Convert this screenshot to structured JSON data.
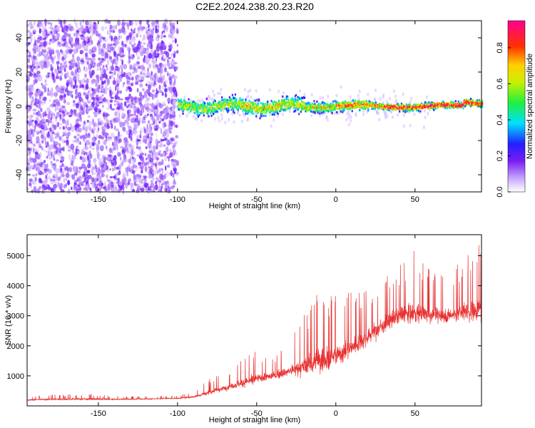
{
  "title": "C2E2.2024.238.20.23.R20",
  "chart_data": [
    {
      "type": "heatmap",
      "xlabel": "Height of straight line (km)",
      "ylabel": "Frequency (Hz)",
      "xlim": [
        -195,
        92
      ],
      "ylim": [
        -50,
        50
      ],
      "xticks": [
        "-150",
        "-100",
        "-50",
        "0",
        "50"
      ],
      "yticks": [
        "40",
        "20",
        "0",
        "-20",
        "-40"
      ],
      "colorbar": {
        "label": "Normalized spectral amplitude",
        "range": [
          0,
          0.95
        ],
        "ticks": [
          "0.0",
          "0.2",
          "0.4",
          "0.6",
          "0.8"
        ],
        "colormap": "rainbow (white-violet-blue-cyan-green-yellow-red-magenta)"
      },
      "regions": [
        {
          "x_from": -195,
          "x_to": -100,
          "pattern": "broadband noise, amplitude ~0.0-0.15 across all frequencies"
        },
        {
          "x_from": -100,
          "x_to": 92,
          "pattern": "narrow band near 0 Hz, amplitude rising to ~0.8-0.9 at positive heights"
        }
      ],
      "grid": false
    },
    {
      "type": "line",
      "xlabel": "Height of straight line (km)",
      "ylabel": "SNR (10 * v/v)",
      "xlim": [
        -195,
        92
      ],
      "ylim": [
        0,
        5700
      ],
      "xticks": [
        "-150",
        "-100",
        "-50",
        "0",
        "50"
      ],
      "yticks": [
        "5000",
        "4000",
        "3000",
        "2000",
        "1000"
      ],
      "color": "#e83030",
      "series": [
        {
          "x": [
            -195,
            -180,
            -160,
            -140,
            -120,
            -100,
            -90,
            -80,
            -70,
            -60,
            -50,
            -40,
            -30,
            -20,
            -10,
            0,
            10,
            20,
            30,
            40,
            50,
            60,
            70,
            80,
            90
          ],
          "y": [
            200,
            220,
            230,
            220,
            230,
            250,
            300,
            450,
            600,
            750,
            900,
            1000,
            1150,
            1300,
            1500,
            1650,
            1950,
            2300,
            2700,
            3000,
            3100,
            3050,
            3000,
            3100,
            3200
          ],
          "max_y": [
            320,
            380,
            420,
            330,
            320,
            350,
            500,
            900,
            1100,
            1500,
            1900,
            1700,
            2100,
            3100,
            4000,
            3800,
            3900,
            4000,
            4200,
            4700,
            5200,
            4600,
            4400,
            4900,
            5600
          ]
        }
      ],
      "grid": false
    }
  ]
}
